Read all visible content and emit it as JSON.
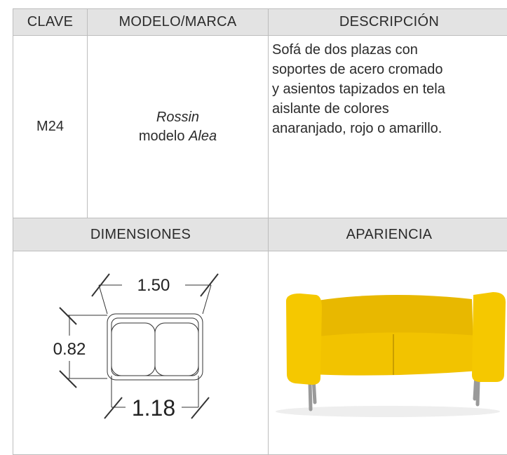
{
  "table": {
    "header": [
      "CLAVE",
      "MODELO/MARCA",
      "DESCRIPCIÓN"
    ],
    "row": {
      "clave": "M24",
      "brand": "Rossin",
      "model_prefix": "modelo",
      "model": "Alea",
      "description": [
        "Sofá de dos plazas con",
        "soportes de acero cromado",
        "y asientos tapizados en tela",
        "aislante de colores",
        "anaranjado, rojo o amarillo."
      ]
    },
    "header2": [
      "DIMENSIONES",
      "APARIENCIA"
    ],
    "dimensions": {
      "width": "1.50",
      "depth": "0.82",
      "inner_width": "1.18"
    }
  }
}
